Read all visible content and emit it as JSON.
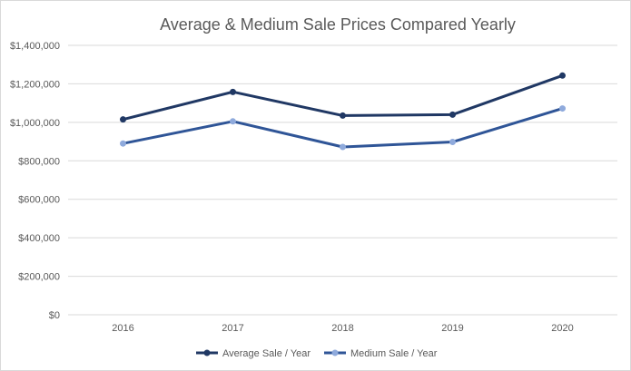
{
  "chart_data": {
    "type": "line",
    "title": "Average & Medium Sale Prices Compared Yearly",
    "categories": [
      "2016",
      "2017",
      "2018",
      "2019",
      "2020"
    ],
    "series": [
      {
        "name": "Average Sale / Year",
        "values": [
          1015000,
          1158000,
          1035000,
          1040000,
          1243000
        ],
        "color": "#203864"
      },
      {
        "name": "Medium Sale / Year",
        "values": [
          890000,
          1005000,
          872000,
          898000,
          1072000
        ],
        "color": "#2f5597",
        "marker_color": "#8faadc"
      }
    ],
    "y_ticks": [
      "$0",
      "$200,000",
      "$400,000",
      "$600,000",
      "$800,000",
      "$1,000,000",
      "$1,200,000",
      "$1,400,000"
    ],
    "ylim": [
      0,
      1400000
    ],
    "grid": true,
    "legend_position": "bottom"
  }
}
